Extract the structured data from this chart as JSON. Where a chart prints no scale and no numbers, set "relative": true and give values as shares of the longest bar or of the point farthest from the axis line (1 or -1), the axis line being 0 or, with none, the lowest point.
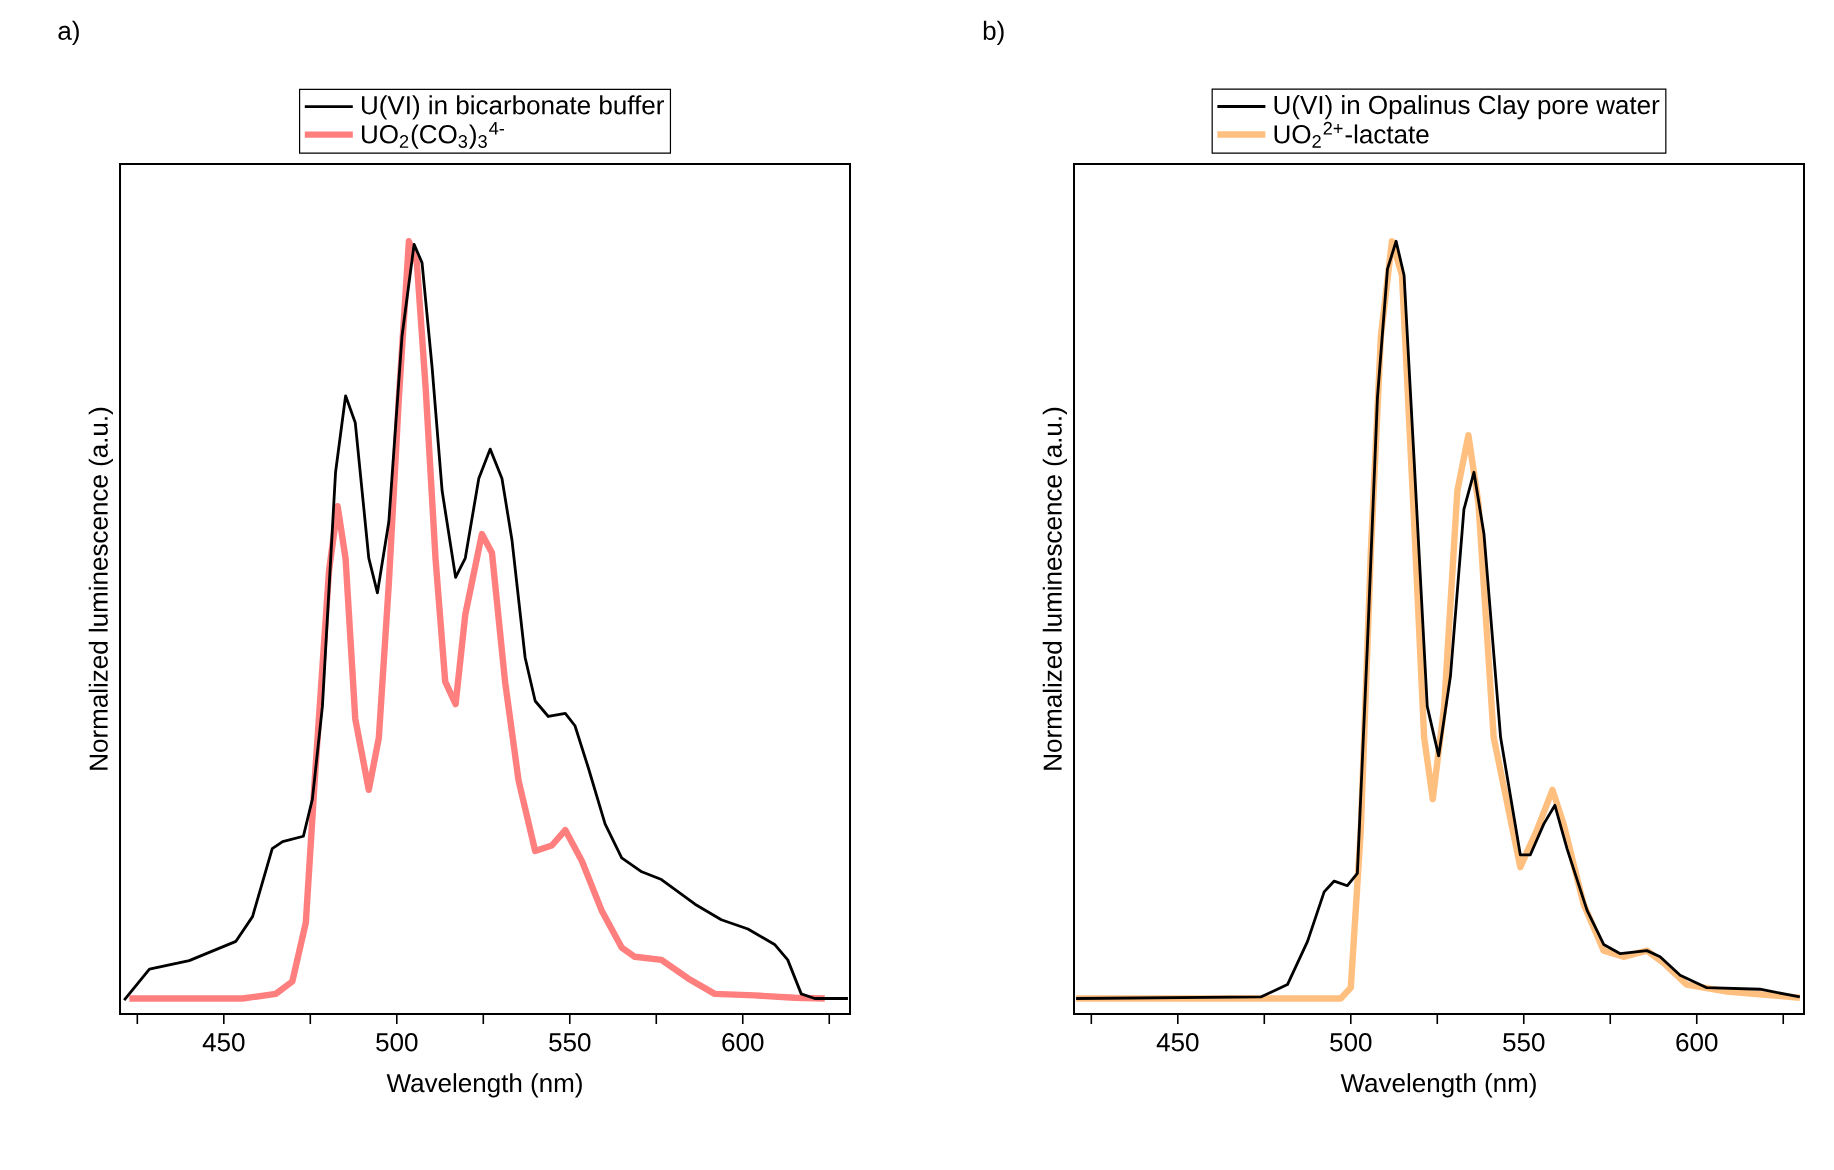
{
  "chart_data": [
    {
      "type": "line",
      "title": "a)",
      "xlabel": "Wavelength (nm)",
      "ylabel": "Normalized luminescence (a.u.)",
      "relative": true,
      "legend": "top",
      "xlim": [
        420,
        631
      ],
      "xticks": [
        {
          "value": 425,
          "label": null
        },
        450,
        {
          "value": 475,
          "label": null
        },
        500,
        {
          "value": 525,
          "label": null
        },
        550,
        {
          "value": 575,
          "label": null
        },
        600,
        {
          "value": 625,
          "label": null
        }
      ],
      "series": [
        {
          "name": "U(VI) in bicarbonate buffer",
          "color": "#000000",
          "x": [
            421.2,
            428.5,
            440,
            453.5,
            458.3,
            464,
            467,
            473,
            475.6,
            478.5,
            482.3,
            485.2,
            488,
            491.9,
            494.4,
            497.7,
            501.5,
            505,
            507.3,
            510.2,
            513.1,
            517,
            519.8,
            523.7,
            527,
            530.4,
            533.3,
            537.1,
            540,
            543.8,
            548.7,
            551.5,
            555.4,
            560.2,
            565,
            570.8,
            576.5,
            586.2,
            593.8,
            601.5,
            609.2,
            613,
            616.9,
            620.8,
            630.4
          ],
          "values": [
            0.018,
            0.058,
            0.069,
            0.094,
            0.126,
            0.214,
            0.223,
            0.23,
            0.278,
            0.398,
            0.701,
            0.8,
            0.765,
            0.59,
            0.545,
            0.637,
            0.877,
            0.996,
            0.972,
            0.837,
            0.677,
            0.565,
            0.59,
            0.693,
            0.731,
            0.693,
            0.613,
            0.461,
            0.405,
            0.385,
            0.389,
            0.373,
            0.318,
            0.246,
            0.202,
            0.184,
            0.174,
            0.142,
            0.122,
            0.11,
            0.09,
            0.07,
            0.026,
            0.02,
            0.02
          ]
        },
        {
          "name": "UO$_{2}$(CO$_{3}$)$_{3}$$^{4-}$",
          "color": "#ff7f7f",
          "x": [
            422.7,
            455.4,
            465,
            469.8,
            473.7,
            476.5,
            480.4,
            482.9,
            485.2,
            488,
            491.9,
            494.8,
            497.7,
            500.6,
            503.5,
            505.8,
            508.3,
            511.2,
            514,
            517,
            519.8,
            524.6,
            527.5,
            531.3,
            535.2,
            540,
            544.8,
            548.7,
            553.5,
            559.2,
            565,
            568.8,
            576.5,
            584.2,
            591.9,
            603.5,
            615,
            623.7
          ],
          "values": [
            0.02,
            0.02,
            0.026,
            0.042,
            0.118,
            0.318,
            0.573,
            0.657,
            0.589,
            0.382,
            0.29,
            0.357,
            0.557,
            0.797,
            1.0,
            0.972,
            0.813,
            0.589,
            0.43,
            0.401,
            0.517,
            0.621,
            0.597,
            0.43,
            0.302,
            0.211,
            0.218,
            0.238,
            0.198,
            0.134,
            0.086,
            0.074,
            0.07,
            0.046,
            0.026,
            0.024,
            0.021,
            0.02
          ]
        }
      ]
    },
    {
      "type": "line",
      "title": "b)",
      "xlabel": "Wavelength (nm)",
      "ylabel": "Normalized luminescence (a.u.)",
      "relative": true,
      "legend": "top",
      "xlim": [
        420,
        631
      ],
      "xticks": [
        {
          "value": 425,
          "label": null
        },
        450,
        {
          "value": 475,
          "label": null
        },
        500,
        {
          "value": 525,
          "label": null
        },
        550,
        {
          "value": 575,
          "label": null
        },
        600,
        {
          "value": 625,
          "label": null
        }
      ],
      "series": [
        {
          "name": "U(VI) in Opalinus Clay pore water",
          "color": "#000000",
          "x": [
            420.6,
            474,
            481.7,
            487.5,
            492.3,
            495.2,
            499,
            501.9,
            504.8,
            507.7,
            510.6,
            513.1,
            515.4,
            518.3,
            522.1,
            525.4,
            528.8,
            532.7,
            535.6,
            538.5,
            543.3,
            549,
            551.9,
            555.8,
            559,
            562.5,
            568.3,
            573.1,
            577.9,
            585.6,
            589.4,
            595.2,
            602.9,
            618.3,
            629.8
          ],
          "values": [
            0.02,
            0.022,
            0.038,
            0.094,
            0.158,
            0.172,
            0.166,
            0.182,
            0.477,
            0.797,
            0.964,
            1.0,
            0.956,
            0.717,
            0.398,
            0.334,
            0.437,
            0.653,
            0.701,
            0.621,
            0.358,
            0.206,
            0.206,
            0.246,
            0.27,
            0.214,
            0.134,
            0.09,
            0.078,
            0.082,
            0.074,
            0.05,
            0.034,
            0.032,
            0.022
          ]
        },
        {
          "name": "UO$_{2}$$^{2+}$-lactate",
          "color": "#ffbf7f",
          "x": [
            420.6,
            497.1,
            500,
            502.9,
            505.8,
            508.7,
            511.9,
            514.8,
            518.3,
            521.2,
            523.7,
            527,
            530.8,
            534,
            536.9,
            541.3,
            549,
            553.8,
            558.3,
            561.5,
            567.3,
            573.1,
            578.8,
            585.6,
            590.4,
            597.1,
            608.7,
            629.8
          ],
          "values": [
            0.02,
            0.02,
            0.034,
            0.238,
            0.598,
            0.877,
            1.0,
            0.956,
            0.637,
            0.358,
            0.278,
            0.398,
            0.677,
            0.749,
            0.661,
            0.358,
            0.19,
            0.238,
            0.29,
            0.246,
            0.142,
            0.082,
            0.074,
            0.082,
            0.066,
            0.038,
            0.029,
            0.021
          ]
        }
      ]
    }
  ]
}
